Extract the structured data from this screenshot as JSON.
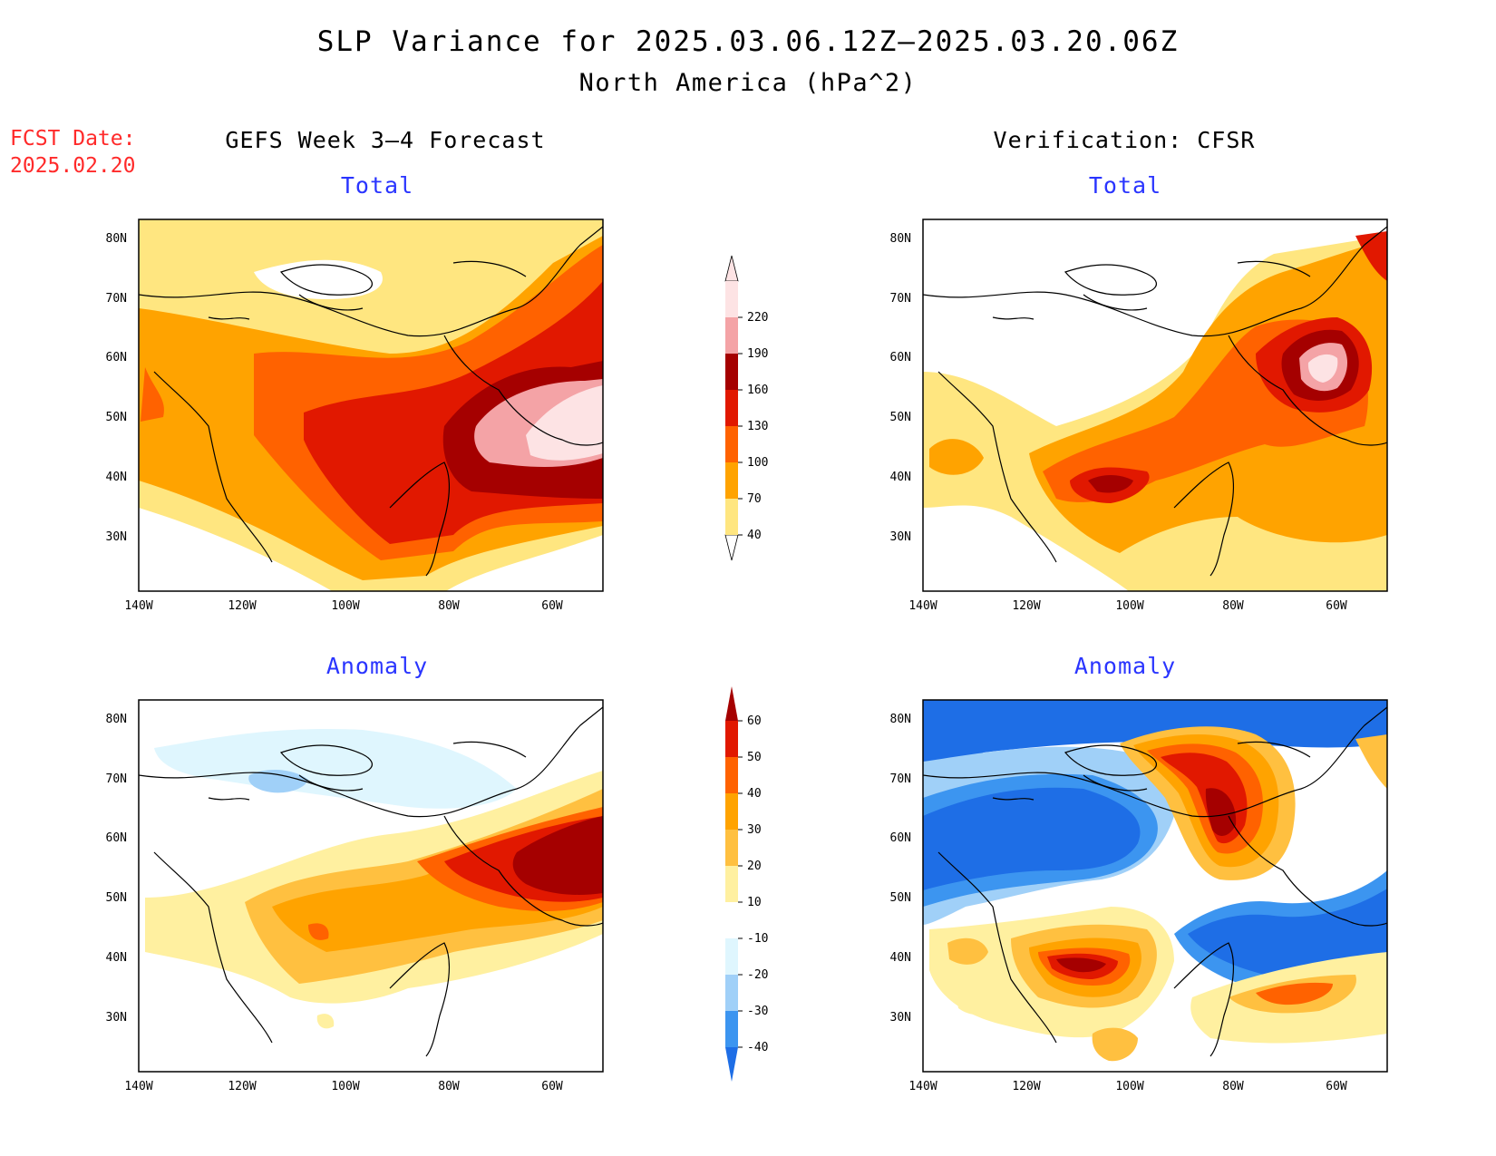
{
  "title": "SLP Variance for 2025.03.06.12Z–2025.03.20.06Z",
  "subtitle": "North America (hPa^2)",
  "fcst_label": "FCST Date:",
  "fcst_date": "2025.02.20",
  "columns": {
    "left": "GEFS Week 3–4 Forecast",
    "right": "Verification: CFSR"
  },
  "panel_titles": {
    "total": "Total",
    "anomaly": "Anomaly"
  },
  "axes": {
    "lat_labels": [
      "80N",
      "70N",
      "60N",
      "50N",
      "40N",
      "30N"
    ],
    "lon_labels": [
      "140W",
      "120W",
      "100W",
      "80W",
      "60W"
    ]
  },
  "total_colorbar": {
    "levels": [
      "40",
      "70",
      "100",
      "130",
      "160",
      "190",
      "220"
    ],
    "colors": [
      "#ffe680",
      "#ffa300",
      "#ff6200",
      "#e11800",
      "#a50000",
      "#f4a3a6",
      "#fde3e4"
    ]
  },
  "anomaly_colorbar": {
    "levels": [
      "-40",
      "-30",
      "-20",
      "-10",
      "10",
      "20",
      "30",
      "40",
      "50",
      "60"
    ],
    "colors": [
      "#1e6ee6",
      "#3c95f0",
      "#a0d0f8",
      "#dff6fe",
      "#ffffff",
      "#fff0a0",
      "#ffc040",
      "#ffa300",
      "#ff6200",
      "#e11800",
      "#a50000"
    ]
  }
}
